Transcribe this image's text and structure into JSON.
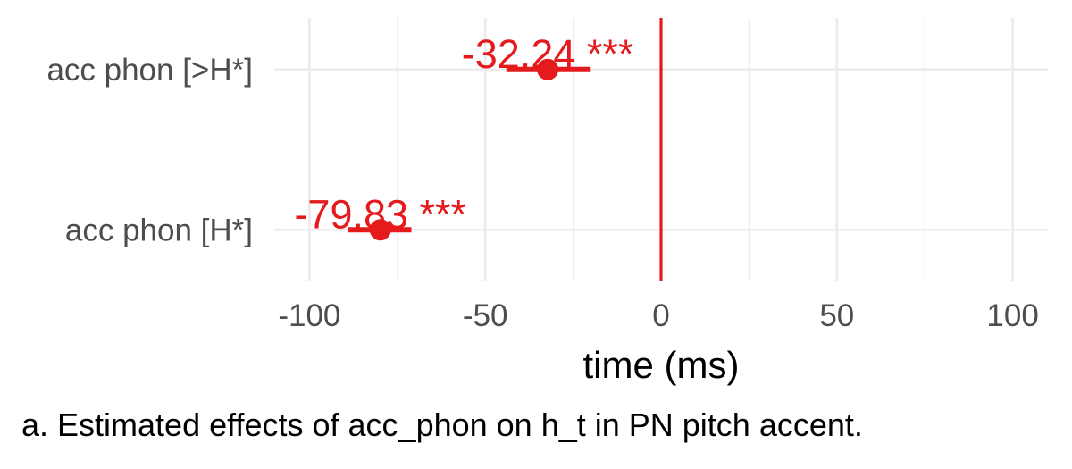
{
  "chart_data": {
    "type": "forest",
    "x_axis": {
      "label": "time (ms)",
      "lim": [
        -110,
        110
      ],
      "ticks": [
        -100,
        -50,
        0,
        50,
        100
      ],
      "tick_labels": [
        "-100",
        "-50",
        "0",
        "50",
        "100"
      ],
      "minor_ticks": [
        -75,
        -25,
        25,
        75
      ]
    },
    "reference_line": 0,
    "grid": true,
    "color": "#e41a1c",
    "terms": [
      {
        "label": "acc phon [>H*]",
        "estimate": -32.24,
        "ci": [
          -44,
          -20
        ],
        "estimate_label": "-32.24",
        "stars": "***"
      },
      {
        "label": "acc phon [H*]",
        "estimate": -79.83,
        "ci": [
          -89,
          -71
        ],
        "estimate_label": "-79.83",
        "stars": "***"
      }
    ]
  },
  "caption": "a. Estimated effects of acc_phon on h_t in PN pitch accent."
}
